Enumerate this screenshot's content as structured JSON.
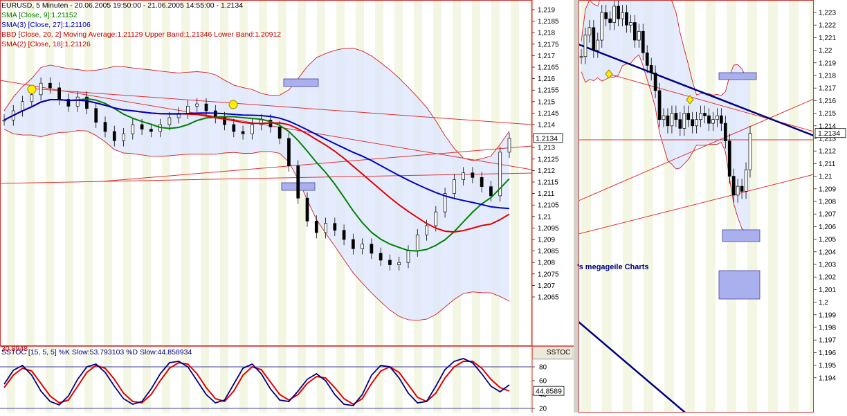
{
  "left_panel": {
    "header": {
      "title": "EURUSD, 5 Minuten - 20.06.2005 19:50:00 - 21.06.2005 14:55:00 - 1.2134",
      "sma9": "SMA [Close, 9]:1.21152",
      "sma3": "SMA(3) [Close, 27]:1.21106",
      "bbd": "BBD [Close, 20, 2] Moving Average:1.21129 Upper Band:1.21346 Lower Band:1.20912",
      "sma2": "SMA(2) [Close, 18]:1.21126"
    },
    "price_axis_labels": [
      "1,219",
      "1,2185",
      "1,218",
      "1,2175",
      "1,217",
      "1,2165",
      "1,216",
      "1,2155",
      "1,215",
      "1,2145",
      "1,214",
      "1,2135",
      "1,213",
      "1,2125",
      "1,212",
      "1,2115",
      "1,211",
      "1,2105",
      "1,21",
      "1,2095",
      "1,209",
      "1,2085",
      "1,208",
      "1,2075",
      "1,207",
      "1,2065"
    ],
    "last_price_label": "1.2134",
    "stoch": {
      "header": "SSTOC [15, 5, 5] %K Slow:53.793103 %D Slow:44.858934",
      "overlap_text": "30.8948",
      "axis_title": "SSTOC",
      "axis_labels": [
        "80",
        "60",
        "40",
        "20"
      ],
      "last_value_label": "44.8589"
    }
  },
  "right_panel": {
    "price_axis_labels": [
      "1,223",
      "1,222",
      "1,221",
      "1,22",
      "1,219",
      "1,218",
      "1,217",
      "1,216",
      "1,215",
      "1,214",
      "1,213",
      "1,212",
      "1,211",
      "1,21",
      "1,209",
      "1,208",
      "1,207",
      "1,206",
      "1,205",
      "1,204",
      "1,203",
      "1,202",
      "1,201",
      "1,2",
      "1,199",
      "1,198",
      "1,197",
      "1,196",
      "1,195",
      "1,194"
    ],
    "last_price_label": "1.2134",
    "caption": "'s megageile Charts"
  },
  "colors": {
    "candle": "#000000",
    "sma9": "#008000",
    "sma27": "#0000c0",
    "sma18": "#e00000",
    "band": "#d02020",
    "band_fill": "#dce6ff",
    "trendline": "#e03030",
    "trend_dark": "#000080",
    "stripe": "#f4f6e4",
    "marker": "#ffee00"
  },
  "chart_data": [
    {
      "type": "candlestick",
      "title": "EURUSD, 5 Minuten - 20.06.2005 19:50:00 - 21.06.2005 14:55:00 - 1.2134",
      "ylim": [
        1.2062,
        1.2195
      ],
      "x": [
        "20.06.2005 19:50:00",
        "21.06.2005 14:55:00"
      ],
      "close_series": [
        1.2142,
        1.2146,
        1.215,
        1.2153,
        1.2158,
        1.2156,
        1.2151,
        1.2148,
        1.2152,
        1.2147,
        1.2141,
        1.2137,
        1.2133,
        1.2136,
        1.214,
        1.2138,
        1.2137,
        1.214,
        1.2143,
        1.2145,
        1.2148,
        1.2149,
        1.2146,
        1.2143,
        1.214,
        1.2137,
        1.2136,
        1.214,
        1.2142,
        1.2139,
        1.2134,
        1.2122,
        1.2108,
        1.2098,
        1.2093,
        1.2097,
        1.2094,
        1.209,
        1.2086,
        1.2088,
        1.2084,
        1.2081,
        1.2079,
        1.208,
        1.2085,
        1.2092,
        1.2096,
        1.2102,
        1.211,
        1.2116,
        1.2119,
        1.2117,
        1.2113,
        1.2109,
        1.2128,
        1.2134
      ],
      "series": [
        {
          "name": "SMA [Close, 9]",
          "last": 1.21152
        },
        {
          "name": "SMA(3) [Close, 27]",
          "last": 1.21106
        },
        {
          "name": "BBD [Close, 20, 2] Moving Average",
          "last": 1.21129
        },
        {
          "name": "Upper Band",
          "last": 1.21346
        },
        {
          "name": "Lower Band",
          "last": 1.20912
        },
        {
          "name": "SMA(2) [Close, 18]",
          "last": 1.21126
        }
      ],
      "last_price": 1.2134
    },
    {
      "type": "line",
      "title": "SSTOC [15, 5, 5]",
      "ylim": [
        15,
        95
      ],
      "yticks": [
        80,
        60,
        40,
        20
      ],
      "series": [
        {
          "name": "%K Slow",
          "last": 53.793103,
          "values": [
            55,
            75,
            82,
            68,
            45,
            30,
            25,
            38,
            62,
            80,
            84,
            72,
            52,
            34,
            26,
            30,
            48,
            70,
            86,
            88,
            80,
            60,
            40,
            28,
            32,
            55,
            78,
            84,
            70,
            48,
            32,
            30,
            45,
            62,
            70,
            60,
            40,
            26,
            24,
            40,
            68,
            82,
            80,
            64,
            42,
            28,
            30,
            52,
            76,
            88,
            92,
            86,
            70,
            52,
            44,
            54
          ]
        },
        {
          "name": "%D Slow",
          "last": 44.858934,
          "values": [
            50,
            68,
            78,
            74,
            56,
            38,
            28,
            32,
            52,
            72,
            82,
            78,
            62,
            42,
            30,
            28,
            40,
            60,
            78,
            86,
            84,
            70,
            50,
            34,
            30,
            45,
            68,
            80,
            76,
            58,
            40,
            32,
            40,
            56,
            66,
            64,
            50,
            34,
            26,
            34,
            56,
            74,
            80,
            72,
            54,
            36,
            30,
            42,
            64,
            80,
            88,
            88,
            78,
            62,
            50,
            45
          ]
        }
      ]
    },
    {
      "type": "candlestick",
      "ylim": [
        1.1932,
        1.2236
      ],
      "close_series": [
        1.2195,
        1.2212,
        1.2218,
        1.22,
        1.2208,
        1.223,
        1.2225,
        1.2222,
        1.2235,
        1.2225,
        1.223,
        1.222,
        1.2222,
        1.2208,
        1.2215,
        1.2198,
        1.2188,
        1.2182,
        1.2168,
        1.2145,
        1.2148,
        1.214,
        1.215,
        1.2145,
        1.2138,
        1.215,
        1.2145,
        1.214,
        1.2145,
        1.215,
        1.2148,
        1.2142,
        1.2145,
        1.2148,
        1.2142,
        1.2128,
        1.21,
        1.2085,
        1.2092,
        1.2088,
        1.2105,
        1.2134
      ],
      "last_price": 1.2134
    }
  ]
}
